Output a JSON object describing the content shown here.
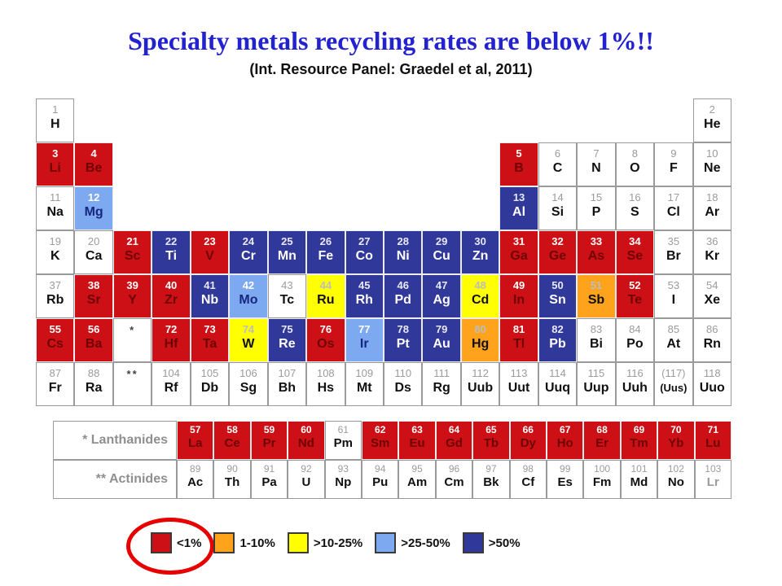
{
  "title": "Specialty metals recycling rates are below 1%!!",
  "subtitle": "(Int. Resource Panel: Graedel et al, 2011)",
  "palette": {
    "red": "#CC1016",
    "orange": "#FFA21C",
    "yellow": "#FFFF00",
    "light_blue": "#7DA9F0",
    "dark_blue": "#303899",
    "white_cell": "#FFFFFF",
    "title_blue": "#2222CE",
    "ellipse_red": "#E60000"
  },
  "legend": {
    "items": [
      {
        "cat": "lt1",
        "label": "<1%",
        "circled": true
      },
      {
        "cat": "r1_10",
        "label": "1-10%",
        "circled": false
      },
      {
        "cat": "r10_25",
        "label": ">10-25%",
        "circled": false
      },
      {
        "cat": "r25_50",
        "label": ">25-50%",
        "circled": false
      },
      {
        "cat": "gt50",
        "label": ">50%",
        "circled": false
      }
    ]
  },
  "table": {
    "lanthanides_label": "* Lanthanides",
    "actinides_label": "** Actinides",
    "main": [
      {
        "r": 1,
        "c": 1,
        "n": "1",
        "s": "H",
        "cat": "none"
      },
      {
        "r": 1,
        "c": 18,
        "n": "2",
        "s": "He",
        "cat": "none"
      },
      {
        "r": 2,
        "c": 1,
        "n": "3",
        "s": "Li",
        "cat": "lt1"
      },
      {
        "r": 2,
        "c": 2,
        "n": "4",
        "s": "Be",
        "cat": "lt1"
      },
      {
        "r": 2,
        "c": 13,
        "n": "5",
        "s": "B",
        "cat": "lt1"
      },
      {
        "r": 2,
        "c": 14,
        "n": "6",
        "s": "C",
        "cat": "none"
      },
      {
        "r": 2,
        "c": 15,
        "n": "7",
        "s": "N",
        "cat": "none"
      },
      {
        "r": 2,
        "c": 16,
        "n": "8",
        "s": "O",
        "cat": "none"
      },
      {
        "r": 2,
        "c": 17,
        "n": "9",
        "s": "F",
        "cat": "none"
      },
      {
        "r": 2,
        "c": 18,
        "n": "10",
        "s": "Ne",
        "cat": "none"
      },
      {
        "r": 3,
        "c": 1,
        "n": "11",
        "s": "Na",
        "cat": "none"
      },
      {
        "r": 3,
        "c": 2,
        "n": "12",
        "s": "Mg",
        "cat": "r25_50"
      },
      {
        "r": 3,
        "c": 13,
        "n": "13",
        "s": "Al",
        "cat": "gt50"
      },
      {
        "r": 3,
        "c": 14,
        "n": "14",
        "s": "Si",
        "cat": "none"
      },
      {
        "r": 3,
        "c": 15,
        "n": "15",
        "s": "P",
        "cat": "none"
      },
      {
        "r": 3,
        "c": 16,
        "n": "16",
        "s": "S",
        "cat": "none"
      },
      {
        "r": 3,
        "c": 17,
        "n": "17",
        "s": "Cl",
        "cat": "none"
      },
      {
        "r": 3,
        "c": 18,
        "n": "18",
        "s": "Ar",
        "cat": "none"
      },
      {
        "r": 4,
        "c": 1,
        "n": "19",
        "s": "K",
        "cat": "none"
      },
      {
        "r": 4,
        "c": 2,
        "n": "20",
        "s": "Ca",
        "cat": "none"
      },
      {
        "r": 4,
        "c": 3,
        "n": "21",
        "s": "Sc",
        "cat": "lt1"
      },
      {
        "r": 4,
        "c": 4,
        "n": "22",
        "s": "Ti",
        "cat": "gt50"
      },
      {
        "r": 4,
        "c": 5,
        "n": "23",
        "s": "V",
        "cat": "lt1"
      },
      {
        "r": 4,
        "c": 6,
        "n": "24",
        "s": "Cr",
        "cat": "gt50"
      },
      {
        "r": 4,
        "c": 7,
        "n": "25",
        "s": "Mn",
        "cat": "gt50"
      },
      {
        "r": 4,
        "c": 8,
        "n": "26",
        "s": "Fe",
        "cat": "gt50"
      },
      {
        "r": 4,
        "c": 9,
        "n": "27",
        "s": "Co",
        "cat": "gt50"
      },
      {
        "r": 4,
        "c": 10,
        "n": "28",
        "s": "Ni",
        "cat": "gt50"
      },
      {
        "r": 4,
        "c": 11,
        "n": "29",
        "s": "Cu",
        "cat": "gt50"
      },
      {
        "r": 4,
        "c": 12,
        "n": "30",
        "s": "Zn",
        "cat": "gt50"
      },
      {
        "r": 4,
        "c": 13,
        "n": "31",
        "s": "Ga",
        "cat": "lt1"
      },
      {
        "r": 4,
        "c": 14,
        "n": "32",
        "s": "Ge",
        "cat": "lt1"
      },
      {
        "r": 4,
        "c": 15,
        "n": "33",
        "s": "As",
        "cat": "lt1"
      },
      {
        "r": 4,
        "c": 16,
        "n": "34",
        "s": "Se",
        "cat": "lt1"
      },
      {
        "r": 4,
        "c": 17,
        "n": "35",
        "s": "Br",
        "cat": "none"
      },
      {
        "r": 4,
        "c": 18,
        "n": "36",
        "s": "Kr",
        "cat": "none"
      },
      {
        "r": 5,
        "c": 1,
        "n": "37",
        "s": "Rb",
        "cat": "none"
      },
      {
        "r": 5,
        "c": 2,
        "n": "38",
        "s": "Sr",
        "cat": "lt1"
      },
      {
        "r": 5,
        "c": 3,
        "n": "39",
        "s": "Y",
        "cat": "lt1"
      },
      {
        "r": 5,
        "c": 4,
        "n": "40",
        "s": "Zr",
        "cat": "lt1"
      },
      {
        "r": 5,
        "c": 5,
        "n": "41",
        "s": "Nb",
        "cat": "gt50"
      },
      {
        "r": 5,
        "c": 6,
        "n": "42",
        "s": "Mo",
        "cat": "r25_50"
      },
      {
        "r": 5,
        "c": 7,
        "n": "43",
        "s": "Tc",
        "cat": "none"
      },
      {
        "r": 5,
        "c": 8,
        "n": "44",
        "s": "Ru",
        "cat": "r10_25"
      },
      {
        "r": 5,
        "c": 9,
        "n": "45",
        "s": "Rh",
        "cat": "gt50"
      },
      {
        "r": 5,
        "c": 10,
        "n": "46",
        "s": "Pd",
        "cat": "gt50"
      },
      {
        "r": 5,
        "c": 11,
        "n": "47",
        "s": "Ag",
        "cat": "gt50"
      },
      {
        "r": 5,
        "c": 12,
        "n": "48",
        "s": "Cd",
        "cat": "r10_25"
      },
      {
        "r": 5,
        "c": 13,
        "n": "49",
        "s": "In",
        "cat": "lt1"
      },
      {
        "r": 5,
        "c": 14,
        "n": "50",
        "s": "Sn",
        "cat": "gt50"
      },
      {
        "r": 5,
        "c": 15,
        "n": "51",
        "s": "Sb",
        "cat": "r1_10"
      },
      {
        "r": 5,
        "c": 16,
        "n": "52",
        "s": "Te",
        "cat": "lt1"
      },
      {
        "r": 5,
        "c": 17,
        "n": "53",
        "s": "I",
        "cat": "none"
      },
      {
        "r": 5,
        "c": 18,
        "n": "54",
        "s": "Xe",
        "cat": "none"
      },
      {
        "r": 6,
        "c": 1,
        "n": "55",
        "s": "Cs",
        "cat": "lt1"
      },
      {
        "r": 6,
        "c": 2,
        "n": "56",
        "s": "Ba",
        "cat": "lt1"
      },
      {
        "r": 6,
        "c": 3,
        "marker": "*"
      },
      {
        "r": 6,
        "c": 4,
        "n": "72",
        "s": "Hf",
        "cat": "lt1"
      },
      {
        "r": 6,
        "c": 5,
        "n": "73",
        "s": "Ta",
        "cat": "lt1"
      },
      {
        "r": 6,
        "c": 6,
        "n": "74",
        "s": "W",
        "cat": "r10_25"
      },
      {
        "r": 6,
        "c": 7,
        "n": "75",
        "s": "Re",
        "cat": "gt50"
      },
      {
        "r": 6,
        "c": 8,
        "n": "76",
        "s": "Os",
        "cat": "lt1"
      },
      {
        "r": 6,
        "c": 9,
        "n": "77",
        "s": "Ir",
        "cat": "r25_50"
      },
      {
        "r": 6,
        "c": 10,
        "n": "78",
        "s": "Pt",
        "cat": "gt50"
      },
      {
        "r": 6,
        "c": 11,
        "n": "79",
        "s": "Au",
        "cat": "gt50"
      },
      {
        "r": 6,
        "c": 12,
        "n": "80",
        "s": "Hg",
        "cat": "r1_10"
      },
      {
        "r": 6,
        "c": 13,
        "n": "81",
        "s": "Tl",
        "cat": "lt1"
      },
      {
        "r": 6,
        "c": 14,
        "n": "82",
        "s": "Pb",
        "cat": "gt50"
      },
      {
        "r": 6,
        "c": 15,
        "n": "83",
        "s": "Bi",
        "cat": "none"
      },
      {
        "r": 6,
        "c": 16,
        "n": "84",
        "s": "Po",
        "cat": "none"
      },
      {
        "r": 6,
        "c": 17,
        "n": "85",
        "s": "At",
        "cat": "none"
      },
      {
        "r": 6,
        "c": 18,
        "n": "86",
        "s": "Rn",
        "cat": "none"
      },
      {
        "r": 7,
        "c": 1,
        "n": "87",
        "s": "Fr",
        "cat": "none"
      },
      {
        "r": 7,
        "c": 2,
        "n": "88",
        "s": "Ra",
        "cat": "none"
      },
      {
        "r": 7,
        "c": 3,
        "marker": "**"
      },
      {
        "r": 7,
        "c": 4,
        "n": "104",
        "s": "Rf",
        "cat": "none"
      },
      {
        "r": 7,
        "c": 5,
        "n": "105",
        "s": "Db",
        "cat": "none"
      },
      {
        "r": 7,
        "c": 6,
        "n": "106",
        "s": "Sg",
        "cat": "none"
      },
      {
        "r": 7,
        "c": 7,
        "n": "107",
        "s": "Bh",
        "cat": "none"
      },
      {
        "r": 7,
        "c": 8,
        "n": "108",
        "s": "Hs",
        "cat": "none"
      },
      {
        "r": 7,
        "c": 9,
        "n": "109",
        "s": "Mt",
        "cat": "none"
      },
      {
        "r": 7,
        "c": 10,
        "n": "110",
        "s": "Ds",
        "cat": "none"
      },
      {
        "r": 7,
        "c": 11,
        "n": "111",
        "s": "Rg",
        "cat": "none"
      },
      {
        "r": 7,
        "c": 12,
        "n": "112",
        "s": "Uub",
        "cat": "none"
      },
      {
        "r": 7,
        "c": 13,
        "n": "113",
        "s": "Uut",
        "cat": "none"
      },
      {
        "r": 7,
        "c": 14,
        "n": "114",
        "s": "Uuq",
        "cat": "none"
      },
      {
        "r": 7,
        "c": 15,
        "n": "115",
        "s": "Uup",
        "cat": "none"
      },
      {
        "r": 7,
        "c": 16,
        "n": "116",
        "s": "Uuh",
        "cat": "none"
      },
      {
        "r": 7,
        "c": 17,
        "n": "(117)",
        "s": "(Uus)",
        "cat": "none"
      },
      {
        "r": 7,
        "c": 18,
        "n": "118",
        "s": "Uuo",
        "cat": "none"
      }
    ],
    "lanthanides": [
      {
        "n": "57",
        "s": "La",
        "cat": "lt1"
      },
      {
        "n": "58",
        "s": "Ce",
        "cat": "lt1"
      },
      {
        "n": "59",
        "s": "Pr",
        "cat": "lt1"
      },
      {
        "n": "60",
        "s": "Nd",
        "cat": "lt1"
      },
      {
        "n": "61",
        "s": "Pm",
        "cat": "none"
      },
      {
        "n": "62",
        "s": "Sm",
        "cat": "lt1"
      },
      {
        "n": "63",
        "s": "Eu",
        "cat": "lt1"
      },
      {
        "n": "64",
        "s": "Gd",
        "cat": "lt1"
      },
      {
        "n": "65",
        "s": "Tb",
        "cat": "lt1"
      },
      {
        "n": "66",
        "s": "Dy",
        "cat": "lt1"
      },
      {
        "n": "67",
        "s": "Ho",
        "cat": "lt1"
      },
      {
        "n": "68",
        "s": "Er",
        "cat": "lt1"
      },
      {
        "n": "69",
        "s": "Tm",
        "cat": "lt1"
      },
      {
        "n": "70",
        "s": "Yb",
        "cat": "lt1"
      },
      {
        "n": "71",
        "s": "Lu",
        "cat": "lt1"
      }
    ],
    "actinides": [
      {
        "n": "89",
        "s": "Ac",
        "cat": "none"
      },
      {
        "n": "90",
        "s": "Th",
        "cat": "none"
      },
      {
        "n": "91",
        "s": "Pa",
        "cat": "none"
      },
      {
        "n": "92",
        "s": "U",
        "cat": "none"
      },
      {
        "n": "93",
        "s": "Np",
        "cat": "none"
      },
      {
        "n": "94",
        "s": "Pu",
        "cat": "none"
      },
      {
        "n": "95",
        "s": "Am",
        "cat": "none"
      },
      {
        "n": "96",
        "s": "Cm",
        "cat": "none"
      },
      {
        "n": "97",
        "s": "Bk",
        "cat": "none"
      },
      {
        "n": "98",
        "s": "Cf",
        "cat": "none"
      },
      {
        "n": "99",
        "s": "Es",
        "cat": "none"
      },
      {
        "n": "100",
        "s": "Fm",
        "cat": "none"
      },
      {
        "n": "101",
        "s": "Md",
        "cat": "none"
      },
      {
        "n": "102",
        "s": "No",
        "cat": "none"
      },
      {
        "n": "103",
        "s": "Lr",
        "cat": "none",
        "dim": true
      }
    ]
  },
  "chart_data": {
    "type": "heatmap",
    "title": "Specialty metals recycling rates are below 1%!!",
    "subtitle": "(Int. Resource Panel: Graedel et al, 2011)",
    "layout": "periodic-table",
    "legend_position": "bottom",
    "legend_bins": [
      {
        "label": "<1%",
        "color": "#CC1016"
      },
      {
        "label": "1-10%",
        "color": "#FFA21C"
      },
      {
        "label": ">10-25%",
        "color": "#FFFF00"
      },
      {
        "label": ">25-50%",
        "color": "#7DA9F0"
      },
      {
        "label": ">50%",
        "color": "#303899"
      }
    ],
    "highlighted_bin": "<1%",
    "element_recycling_categories": {
      "<1%": [
        "Li",
        "Be",
        "B",
        "Sc",
        "V",
        "Ga",
        "Ge",
        "As",
        "Se",
        "Sr",
        "Y",
        "Zr",
        "In",
        "Te",
        "Cs",
        "Ba",
        "Hf",
        "Ta",
        "Os",
        "Tl",
        "La",
        "Ce",
        "Pr",
        "Nd",
        "Sm",
        "Eu",
        "Gd",
        "Tb",
        "Dy",
        "Ho",
        "Er",
        "Tm",
        "Yb",
        "Lu"
      ],
      "1-10%": [
        "Sb",
        "Hg"
      ],
      ">10-25%": [
        "Ru",
        "Cd",
        "W"
      ],
      ">25-50%": [
        "Mg",
        "Mo",
        "Ir"
      ],
      ">50%": [
        "Al",
        "Ti",
        "Cr",
        "Mn",
        "Fe",
        "Co",
        "Ni",
        "Cu",
        "Zn",
        "Nb",
        "Rh",
        "Pd",
        "Ag",
        "Sn",
        "Re",
        "Pt",
        "Au",
        "Pb"
      ],
      "unassessed": [
        "H",
        "He",
        "C",
        "N",
        "O",
        "F",
        "Ne",
        "Na",
        "Si",
        "P",
        "S",
        "Cl",
        "Ar",
        "K",
        "Ca",
        "Br",
        "Kr",
        "Rb",
        "Tc",
        "I",
        "Xe",
        "Bi",
        "Po",
        "At",
        "Rn",
        "Fr",
        "Ra",
        "Rf",
        "Db",
        "Sg",
        "Bh",
        "Hs",
        "Mt",
        "Ds",
        "Rg",
        "Uub",
        "Uut",
        "Uuq",
        "Uup",
        "Uuh",
        "Uus",
        "Uuo",
        "Pm",
        "Ac",
        "Th",
        "Pa",
        "U",
        "Np",
        "Pu",
        "Am",
        "Cm",
        "Bk",
        "Cf",
        "Es",
        "Fm",
        "Md",
        "No",
        "Lr"
      ]
    }
  }
}
